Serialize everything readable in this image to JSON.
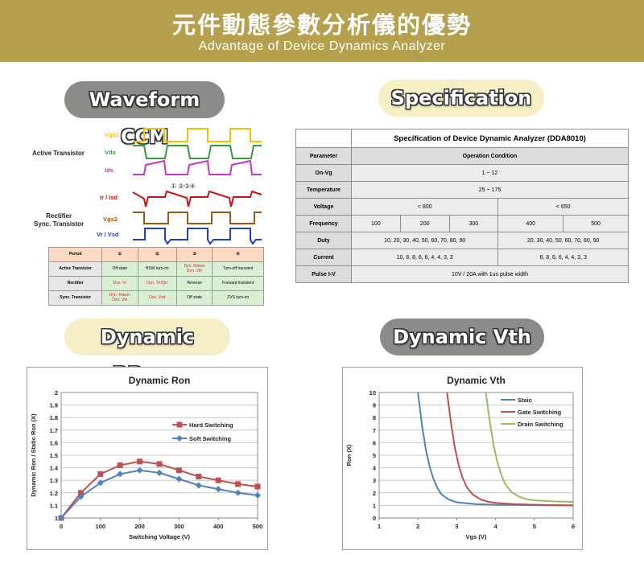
{
  "banner": {
    "title_zh": "元件動態參數分析儀的優勢",
    "subtitle_en": "Advantage of Device Dynamics Analyzer"
  },
  "pills": {
    "waveform": "Waveform CCM",
    "specification": "Specification",
    "rdson": "Dynamic RDson",
    "vth": "Dynamic Vth"
  },
  "waveform": {
    "group_active": "Active Transistor",
    "group_rectifier": "Rectifier\nSync. Transistor",
    "signals": [
      {
        "label": "Vgs1",
        "color": "#f2c200"
      },
      {
        "label": "Vds",
        "color": "#3a9a3a"
      },
      {
        "label": "Ids",
        "color": "#cc33cc"
      },
      {
        "label": "Ir / Isd",
        "color": "#cc1111"
      },
      {
        "label": "Vgs2",
        "color": "#9a5a10"
      },
      {
        "label": "Vr / Vsd",
        "color": "#1d3fc9"
      }
    ],
    "markers": "①  ②③④",
    "period_table": {
      "header": [
        "Period",
        "①",
        "②",
        "③",
        "④"
      ],
      "rows": [
        [
          "Active Transistor",
          "Off state",
          "HSW turn-on",
          "Dyn. Rdson\nDyn. Vth",
          "Turn-off transient"
        ],
        [
          "Rectifier",
          "Dyn. Vr",
          "Dyn. Trr/Qrr",
          "Reverse",
          "Forward transient"
        ],
        [
          "Sync. Transistor",
          "Dyn. Rdson\nDyn. Vth",
          "Dyn. Vsd",
          "Off state",
          "ZVS turn-on"
        ]
      ]
    }
  },
  "spec": {
    "title": "Specification of Device Dynamic Analyzer (DDA8010)",
    "rows": [
      {
        "name": "Parameter",
        "value": "Operation Condition"
      },
      {
        "name": "On-Vg",
        "value": "1 ~ 12"
      },
      {
        "name": "Temperature",
        "value": "25 ~ 175"
      },
      {
        "name": "Voltage",
        "v1": "< 800",
        "v2": "< 650"
      },
      {
        "name": "Frequency",
        "freqs": [
          "100",
          "200",
          "300",
          "400",
          "500"
        ]
      },
      {
        "name": "Duty",
        "v1": "10, 20, 30, 40, 50, 60, 70, 80, 90",
        "v2": "20, 30, 40, 50, 60, 70, 80, 90"
      },
      {
        "name": "Current",
        "v1": "10,  8,  8,  6,  6,  4,  4,  3,  3",
        "v2": "8,  8,  6,  6,  4,  4,  3,  3"
      },
      {
        "name": "Pulse I-V",
        "value": "10V / 20A with 1us pulse width"
      }
    ]
  },
  "chart_data": [
    {
      "type": "line",
      "title": "Dynamic Ron",
      "xlabel": "Switching Voltage (V)",
      "ylabel": "Dynamic Ron / Static Ron (X)",
      "xlim": [
        0,
        500
      ],
      "ylim": [
        1,
        2
      ],
      "xticks": [
        0,
        100,
        200,
        300,
        400,
        500
      ],
      "yticks": [
        1,
        1.1,
        1.2,
        1.3,
        1.4,
        1.5,
        1.6,
        1.7,
        1.8,
        1.9,
        2
      ],
      "grid": true,
      "legend": "right",
      "series": [
        {
          "name": "Hard Switching",
          "color": "#c0504d",
          "marker": "square",
          "x": [
            0,
            50,
            100,
            150,
            200,
            250,
            300,
            350,
            400,
            450,
            500
          ],
          "y": [
            1.0,
            1.2,
            1.35,
            1.42,
            1.45,
            1.43,
            1.38,
            1.33,
            1.3,
            1.27,
            1.25
          ]
        },
        {
          "name": "Soft Switching",
          "color": "#4f81bd",
          "marker": "diamond",
          "x": [
            0,
            50,
            100,
            150,
            200,
            250,
            300,
            350,
            400,
            450,
            500
          ],
          "y": [
            1.0,
            1.17,
            1.28,
            1.35,
            1.38,
            1.36,
            1.31,
            1.26,
            1.23,
            1.2,
            1.18
          ]
        }
      ]
    },
    {
      "type": "line",
      "title": "Dynamic Vth",
      "xlabel": "Vgs (V)",
      "ylabel": "Ron (X)",
      "xlim": [
        1,
        6
      ],
      "ylim": [
        0,
        10
      ],
      "xticks": [
        1,
        2,
        3,
        4,
        5,
        6
      ],
      "yticks": [
        0,
        1,
        2,
        3,
        4,
        5,
        6,
        7,
        8,
        9,
        10
      ],
      "grid": true,
      "legend": "top-right",
      "series": [
        {
          "name": "Staic",
          "color": "#4f81bd",
          "x": [
            2.0,
            2.1,
            2.2,
            2.3,
            2.4,
            2.5,
            2.6,
            2.8,
            3.0,
            3.5,
            4.0,
            5.0,
            6.0
          ],
          "y": [
            10,
            7.5,
            5.5,
            4.1,
            3.1,
            2.4,
            1.9,
            1.45,
            1.25,
            1.1,
            1.05,
            1.02,
            1.0
          ]
        },
        {
          "name": "Gate Switching",
          "color": "#c0504d",
          "x": [
            2.75,
            2.85,
            2.95,
            3.05,
            3.15,
            3.25,
            3.4,
            3.6,
            3.8,
            4.0,
            4.5,
            5.0,
            6.0
          ],
          "y": [
            10,
            7.6,
            5.6,
            4.2,
            3.2,
            2.5,
            1.9,
            1.5,
            1.3,
            1.2,
            1.1,
            1.05,
            1.0
          ]
        },
        {
          "name": "Drain Switching",
          "color": "#9bbb59",
          "x": [
            3.75,
            3.85,
            3.95,
            4.05,
            4.15,
            4.25,
            4.4,
            4.6,
            4.8,
            5.0,
            5.5,
            6.0
          ],
          "y": [
            10,
            7.7,
            5.8,
            4.4,
            3.4,
            2.7,
            2.1,
            1.7,
            1.5,
            1.4,
            1.32,
            1.28
          ]
        }
      ]
    }
  ]
}
